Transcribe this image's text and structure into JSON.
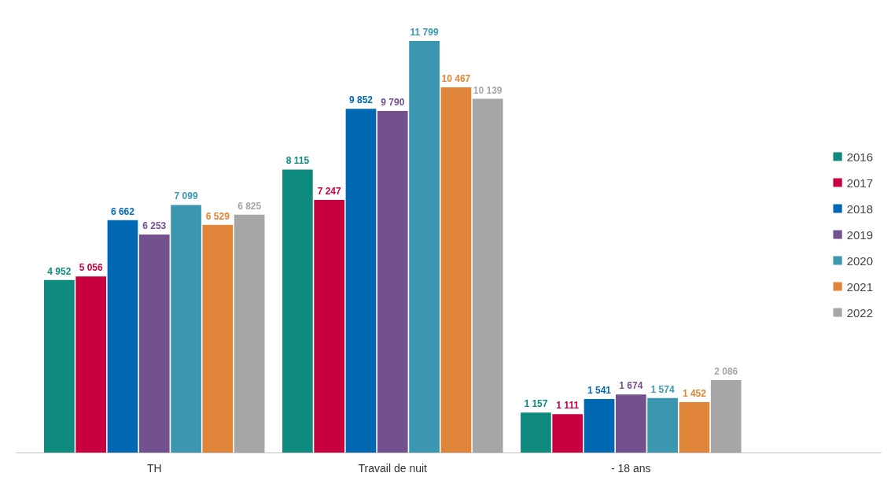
{
  "chart_data": {
    "type": "bar",
    "categories": [
      "TH",
      "Travail de nuit",
      "- 18 ans"
    ],
    "series": [
      {
        "name": "2016",
        "color": "#0e8a7e",
        "values": [
          4952,
          8115,
          1157
        ],
        "value_labels": [
          "4 952",
          "8 115",
          "1 157"
        ]
      },
      {
        "name": "2017",
        "color": "#c8003f",
        "values": [
          5056,
          7247,
          1111
        ],
        "value_labels": [
          "5 056",
          "7 247",
          "1 111"
        ]
      },
      {
        "name": "2018",
        "color": "#0068b3",
        "values": [
          6662,
          9852,
          1541
        ],
        "value_labels": [
          "6 662",
          "9 852",
          "1 541"
        ]
      },
      {
        "name": "2019",
        "color": "#73518f",
        "values": [
          6253,
          9790,
          1674
        ],
        "value_labels": [
          "6 253",
          "9 790",
          "1 674"
        ]
      },
      {
        "name": "2020",
        "color": "#3b97b0",
        "values": [
          7099,
          11799,
          1574
        ],
        "value_labels": [
          "7 099",
          "11 799",
          "1 574"
        ]
      },
      {
        "name": "2021",
        "color": "#e08439",
        "values": [
          6529,
          10467,
          1452
        ],
        "value_labels": [
          "6 529",
          "10 467",
          "1 452"
        ]
      },
      {
        "name": "2022",
        "color": "#a6a6a6",
        "values": [
          6825,
          10139,
          2086
        ],
        "value_labels": [
          "6 825",
          "10 139",
          "2 086"
        ]
      }
    ],
    "legend": "right",
    "grid": false
  }
}
